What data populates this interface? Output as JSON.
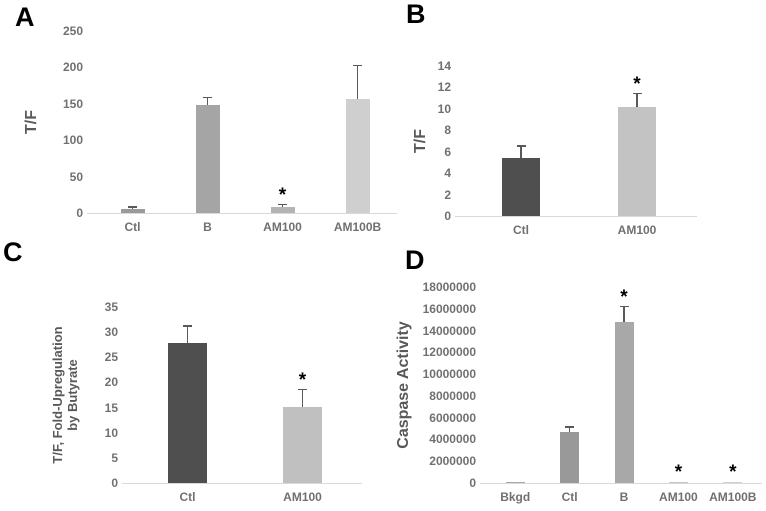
{
  "figure": {
    "background": "#ffffff",
    "panel_label_color": "#000000",
    "axis_text_color": "#707070",
    "axis_label_color": "#595959",
    "axis_line_color": "#d9d9d9",
    "error_bar_color": "#595959",
    "significance_marker": "*"
  },
  "chart_data": [
    {
      "type": "bar",
      "panel": "A",
      "title": "",
      "xlabel": "",
      "ylabel": "T/F",
      "categories": [
        "Ctl",
        "B",
        "AM100",
        "AM100B"
      ],
      "values": [
        5,
        148,
        8,
        157
      ],
      "errors": [
        3,
        10,
        3,
        45
      ],
      "significant": [
        false,
        false,
        true,
        false
      ],
      "bar_colors": [
        "#9a9a9a",
        "#a5a5a5",
        "#b4b4b4",
        "#cfcfcf"
      ],
      "ylim": [
        0,
        250
      ],
      "yticks": [
        "0",
        "50",
        "100",
        "150",
        "200",
        "250"
      ],
      "grid": false,
      "legend": "none"
    },
    {
      "type": "bar",
      "panel": "B",
      "title": "",
      "xlabel": "",
      "ylabel": "T/F",
      "categories": [
        "Ctl",
        "AM100"
      ],
      "values": [
        5.4,
        10.2
      ],
      "errors": [
        1.1,
        1.2
      ],
      "significant": [
        false,
        true
      ],
      "bar_colors": [
        "#4f4f4f",
        "#c3c3c3"
      ],
      "ylim": [
        0,
        14
      ],
      "yticks": [
        "0",
        "2",
        "4",
        "6",
        "8",
        "10",
        "12",
        "14"
      ],
      "grid": false,
      "legend": "none"
    },
    {
      "type": "bar",
      "panel": "C",
      "title": "",
      "xlabel": "",
      "ylabel": "T/F, Fold-Upregulation\nby Butyrate",
      "categories": [
        "Ctl",
        "AM100"
      ],
      "values": [
        27.8,
        15.2
      ],
      "errors": [
        3.4,
        3.3
      ],
      "significant": [
        false,
        true
      ],
      "bar_colors": [
        "#4f4f4f",
        "#c0c0c0"
      ],
      "ylim": [
        0,
        35
      ],
      "yticks": [
        "0",
        "5",
        "10",
        "15",
        "20",
        "25",
        "30",
        "35"
      ],
      "grid": false,
      "legend": "none"
    },
    {
      "type": "bar",
      "panel": "D",
      "title": "",
      "xlabel": "",
      "ylabel": "Caspase Activity",
      "categories": [
        "Bkgd",
        "Ctl",
        "B",
        "AM100",
        "AM100B"
      ],
      "values": [
        100000,
        4700000,
        14800000,
        60000,
        60000
      ],
      "errors": [
        0,
        400000,
        1400000,
        0,
        0
      ],
      "significant": [
        false,
        false,
        true,
        true,
        true
      ],
      "bar_colors": [
        "#a9a9a9",
        "#999999",
        "#a8a8a8",
        "#c6c6c6",
        "#d2d2d2"
      ],
      "ylim": [
        0,
        18000000
      ],
      "yticks": [
        "0",
        "2000000",
        "4000000",
        "6000000",
        "8000000",
        "10000000",
        "12000000",
        "14000000",
        "16000000",
        "18000000"
      ],
      "grid": false,
      "legend": "none"
    }
  ]
}
